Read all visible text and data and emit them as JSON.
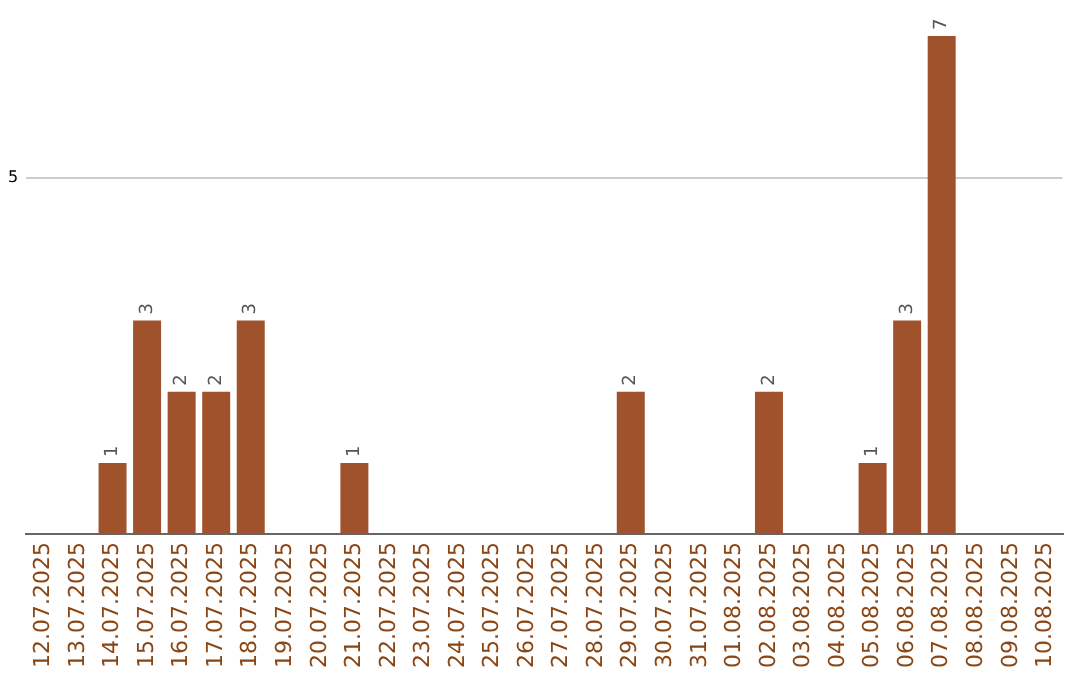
{
  "chart_data": {
    "type": "bar",
    "categories": [
      "12.07.2025",
      "13.07.2025",
      "14.07.2025",
      "15.07.2025",
      "16.07.2025",
      "17.07.2025",
      "18.07.2025",
      "19.07.2025",
      "20.07.2025",
      "21.07.2025",
      "22.07.2025",
      "23.07.2025",
      "24.07.2025",
      "25.07.2025",
      "26.07.2025",
      "27.07.2025",
      "28.07.2025",
      "29.07.2025",
      "30.07.2025",
      "31.07.2025",
      "01.08.2025",
      "02.08.2025",
      "03.08.2025",
      "04.08.2025",
      "05.08.2025",
      "06.08.2025",
      "07.08.2025",
      "08.08.2025",
      "09.08.2025",
      "10.08.2025"
    ],
    "values": [
      0,
      0,
      1,
      3,
      2,
      2,
      3,
      0,
      0,
      1,
      0,
      0,
      0,
      0,
      0,
      0,
      0,
      2,
      0,
      0,
      0,
      2,
      0,
      0,
      1,
      3,
      7,
      0,
      0,
      0
    ],
    "value_labels": [
      null,
      null,
      "1",
      "3",
      "2",
      "2",
      "3",
      null,
      null,
      "1",
      null,
      null,
      null,
      null,
      null,
      null,
      null,
      "2",
      null,
      null,
      null,
      "2",
      null,
      null,
      "1",
      "3",
      "7",
      null,
      null,
      null
    ],
    "color": "#a0522d",
    "ylim": [
      0,
      7
    ],
    "yticks": [
      5
    ],
    "grid": "y",
    "legend": false
  }
}
